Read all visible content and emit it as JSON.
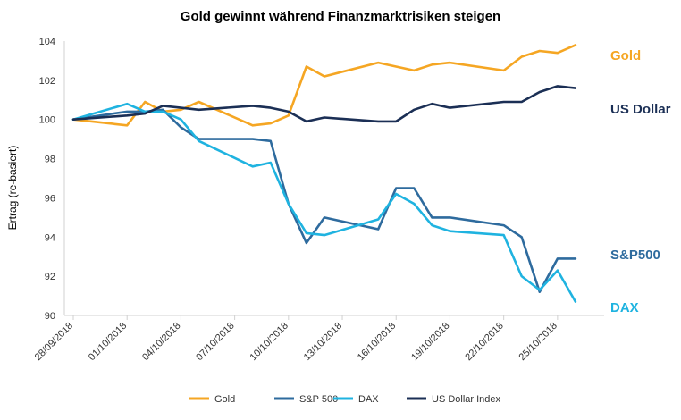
{
  "chart_data": {
    "type": "line",
    "title": "Gold gewinnt während Finanzmarktrisiken steigen",
    "ylabel": "Ertrag (re-basiert)",
    "xlabel": "",
    "ylim": [
      90,
      104
    ],
    "yticks": [
      90,
      92,
      94,
      96,
      98,
      100,
      102,
      104
    ],
    "xlim": [
      "2018-09-28",
      "2018-10-27"
    ],
    "xticks": [
      "28/09/2018",
      "01/10/2018",
      "04/10/2018",
      "07/10/2018",
      "10/10/2018",
      "13/10/2018",
      "16/10/2018",
      "19/10/2018",
      "22/10/2018",
      "25/10/2018"
    ],
    "grid": "none",
    "legend_position": "bottom",
    "series": [
      {
        "name": "Gold",
        "end_label": "Gold",
        "color": "#f5a623",
        "points": [
          [
            "2018-09-28",
            100.0
          ],
          [
            "2018-10-01",
            99.7
          ],
          [
            "2018-10-02",
            100.9
          ],
          [
            "2018-10-03",
            100.4
          ],
          [
            "2018-10-04",
            100.5
          ],
          [
            "2018-10-05",
            100.9
          ],
          [
            "2018-10-08",
            99.7
          ],
          [
            "2018-10-09",
            99.8
          ],
          [
            "2018-10-10",
            100.2
          ],
          [
            "2018-10-11",
            102.7
          ],
          [
            "2018-10-12",
            102.2
          ],
          [
            "2018-10-15",
            102.9
          ],
          [
            "2018-10-16",
            102.7
          ],
          [
            "2018-10-17",
            102.5
          ],
          [
            "2018-10-18",
            102.8
          ],
          [
            "2018-10-19",
            102.9
          ],
          [
            "2018-10-22",
            102.5
          ],
          [
            "2018-10-23",
            103.2
          ],
          [
            "2018-10-24",
            103.5
          ],
          [
            "2018-10-25",
            103.4
          ],
          [
            "2018-10-26",
            103.8
          ]
        ]
      },
      {
        "name": "S&P 500",
        "end_label": "S&P500",
        "color": "#2e6b9e",
        "points": [
          [
            "2018-09-28",
            100.0
          ],
          [
            "2018-10-01",
            100.4
          ],
          [
            "2018-10-02",
            100.4
          ],
          [
            "2018-10-03",
            100.5
          ],
          [
            "2018-10-04",
            99.6
          ],
          [
            "2018-10-05",
            99.0
          ],
          [
            "2018-10-08",
            99.0
          ],
          [
            "2018-10-09",
            98.9
          ],
          [
            "2018-10-10",
            95.7
          ],
          [
            "2018-10-11",
            93.7
          ],
          [
            "2018-10-12",
            95.0
          ],
          [
            "2018-10-15",
            94.4
          ],
          [
            "2018-10-16",
            96.5
          ],
          [
            "2018-10-17",
            96.5
          ],
          [
            "2018-10-18",
            95.0
          ],
          [
            "2018-10-19",
            95.0
          ],
          [
            "2018-10-22",
            94.6
          ],
          [
            "2018-10-23",
            94.0
          ],
          [
            "2018-10-24",
            91.2
          ],
          [
            "2018-10-25",
            92.9
          ],
          [
            "2018-10-26",
            92.9
          ]
        ]
      },
      {
        "name": "DAX",
        "end_label": "DAX",
        "color": "#1fb3e0",
        "points": [
          [
            "2018-09-28",
            100.0
          ],
          [
            "2018-10-01",
            100.8
          ],
          [
            "2018-10-02",
            100.4
          ],
          [
            "2018-10-03",
            100.4
          ],
          [
            "2018-10-04",
            100.0
          ],
          [
            "2018-10-05",
            98.9
          ],
          [
            "2018-10-08",
            97.6
          ],
          [
            "2018-10-09",
            97.8
          ],
          [
            "2018-10-10",
            95.7
          ],
          [
            "2018-10-11",
            94.2
          ],
          [
            "2018-10-12",
            94.1
          ],
          [
            "2018-10-15",
            94.9
          ],
          [
            "2018-10-16",
            96.2
          ],
          [
            "2018-10-17",
            95.7
          ],
          [
            "2018-10-18",
            94.6
          ],
          [
            "2018-10-19",
            94.3
          ],
          [
            "2018-10-22",
            94.1
          ],
          [
            "2018-10-23",
            92.0
          ],
          [
            "2018-10-24",
            91.3
          ],
          [
            "2018-10-25",
            92.3
          ],
          [
            "2018-10-26",
            90.7
          ]
        ]
      },
      {
        "name": "US Dollar Index",
        "end_label": "US Dollar",
        "color": "#1b2f55",
        "points": [
          [
            "2018-09-28",
            100.0
          ],
          [
            "2018-10-01",
            100.2
          ],
          [
            "2018-10-02",
            100.3
          ],
          [
            "2018-10-03",
            100.7
          ],
          [
            "2018-10-04",
            100.6
          ],
          [
            "2018-10-05",
            100.5
          ],
          [
            "2018-10-08",
            100.7
          ],
          [
            "2018-10-09",
            100.6
          ],
          [
            "2018-10-10",
            100.4
          ],
          [
            "2018-10-11",
            99.9
          ],
          [
            "2018-10-12",
            100.1
          ],
          [
            "2018-10-15",
            99.9
          ],
          [
            "2018-10-16",
            99.9
          ],
          [
            "2018-10-17",
            100.5
          ],
          [
            "2018-10-18",
            100.8
          ],
          [
            "2018-10-19",
            100.6
          ],
          [
            "2018-10-22",
            100.9
          ],
          [
            "2018-10-23",
            100.9
          ],
          [
            "2018-10-24",
            101.4
          ],
          [
            "2018-10-25",
            101.7
          ],
          [
            "2018-10-26",
            101.6
          ]
        ]
      }
    ]
  }
}
